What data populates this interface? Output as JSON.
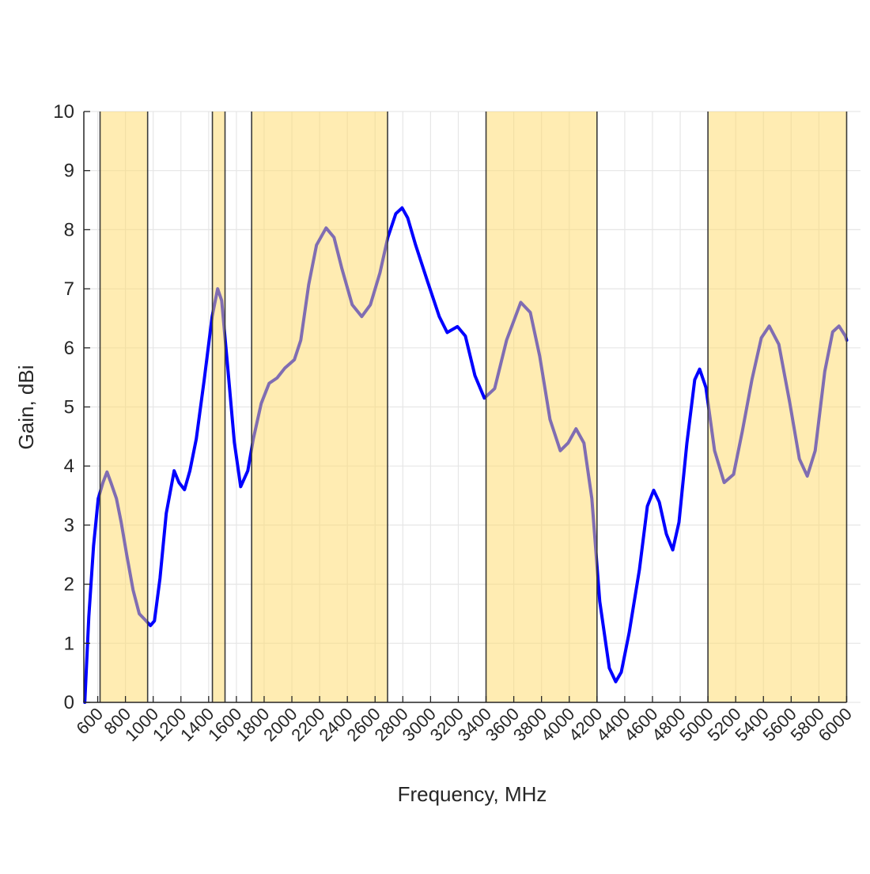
{
  "chart_data": {
    "type": "line",
    "title": "",
    "xlabel": "Frequency, MHz",
    "ylabel": "Gain, dBi",
    "xlim": [
      500,
      6100
    ],
    "ylim": [
      0,
      10
    ],
    "grid": true,
    "xticks": [
      600,
      800,
      1000,
      1200,
      1400,
      1600,
      1800,
      2000,
      2200,
      2400,
      2600,
      2800,
      3000,
      3200,
      3400,
      3600,
      3800,
      4000,
      4200,
      4400,
      4600,
      4800,
      5000,
      5200,
      5400,
      5600,
      5800,
      6000
    ],
    "yticks": [
      0,
      1,
      2,
      3,
      4,
      5,
      6,
      7,
      8,
      9,
      10
    ],
    "line_color": "#0000ff",
    "band_color": "#ffd966",
    "highlight_bands": [
      [
        617,
        960
      ],
      [
        1427,
        1518
      ],
      [
        1710,
        2690
      ],
      [
        3400,
        4200
      ],
      [
        5000,
        6000
      ]
    ],
    "series": [
      {
        "x": [
          507,
          536,
          570,
          604,
          638,
          667,
          695,
          735,
          769,
          809,
          855,
          900,
          940,
          980,
          1009,
          1049,
          1094,
          1151,
          1186,
          1226,
          1265,
          1311,
          1368,
          1425,
          1465,
          1494,
          1540,
          1585,
          1631,
          1682,
          1722,
          1779,
          1836,
          1893,
          1950,
          2018,
          2064,
          2121,
          2178,
          2247,
          2304,
          2361,
          2435,
          2504,
          2566,
          2635,
          2692,
          2749,
          2795,
          2835,
          2892,
          2977,
          3063,
          3120,
          3194,
          3251,
          3320,
          3388,
          3462,
          3548,
          3650,
          3719,
          3787,
          3861,
          3935,
          3992,
          4049,
          4106,
          4163,
          4220,
          4289,
          4335,
          4375,
          4432,
          4506,
          4563,
          4609,
          4649,
          4700,
          4746,
          4791,
          4848,
          4905,
          4940,
          4985,
          5048,
          5117,
          5185,
          5248,
          5317,
          5385,
          5442,
          5511,
          5591,
          5659,
          5716,
          5773,
          5842,
          5899,
          5945,
          5991,
          6000
        ],
        "y": [
          0,
          1.45,
          2.65,
          3.45,
          3.72,
          3.9,
          3.72,
          3.45,
          3.05,
          2.5,
          1.9,
          1.5,
          1.4,
          1.3,
          1.38,
          2.1,
          3.2,
          3.92,
          3.72,
          3.6,
          3.92,
          4.46,
          5.46,
          6.53,
          7.0,
          6.8,
          5.6,
          4.4,
          3.65,
          3.92,
          4.46,
          5.06,
          5.4,
          5.49,
          5.66,
          5.8,
          6.13,
          7.07,
          7.74,
          8.03,
          7.87,
          7.34,
          6.73,
          6.53,
          6.73,
          7.27,
          7.87,
          8.27,
          8.37,
          8.2,
          7.74,
          7.13,
          6.53,
          6.26,
          6.36,
          6.2,
          5.53,
          5.15,
          5.31,
          6.13,
          6.77,
          6.6,
          5.86,
          4.79,
          4.26,
          4.39,
          4.63,
          4.39,
          3.45,
          1.71,
          0.58,
          0.35,
          0.51,
          1.18,
          2.25,
          3.32,
          3.59,
          3.39,
          2.85,
          2.58,
          3.05,
          4.39,
          5.46,
          5.64,
          5.33,
          4.26,
          3.72,
          3.86,
          4.59,
          5.46,
          6.17,
          6.37,
          6.06,
          5.06,
          4.12,
          3.83,
          4.26,
          5.6,
          6.27,
          6.37,
          6.2,
          6.13
        ]
      }
    ]
  }
}
